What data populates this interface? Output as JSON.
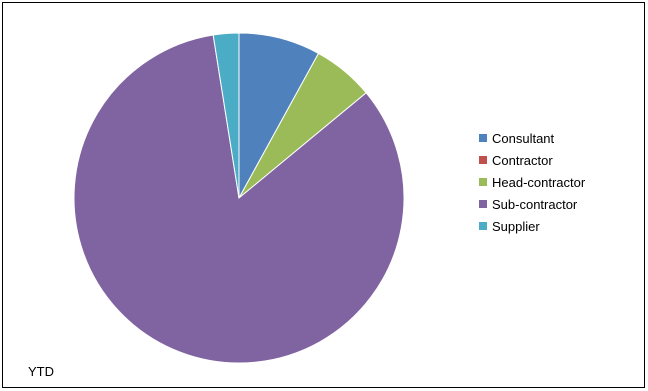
{
  "chart_data": {
    "type": "pie",
    "title": "",
    "categories": [
      "Consultant",
      "Contractor",
      "Head-contractor",
      "Sub-contractor",
      "Supplier"
    ],
    "values": [
      8.0,
      0.0,
      6.0,
      83.5,
      2.5
    ],
    "colors": [
      "#4f81bd",
      "#c0504d",
      "#9bbb59",
      "#8064a2",
      "#4bacc6"
    ],
    "legend_position": "right",
    "start_angle_deg": 0,
    "direction": "clockwise"
  },
  "footer": {
    "label": "YTD"
  }
}
